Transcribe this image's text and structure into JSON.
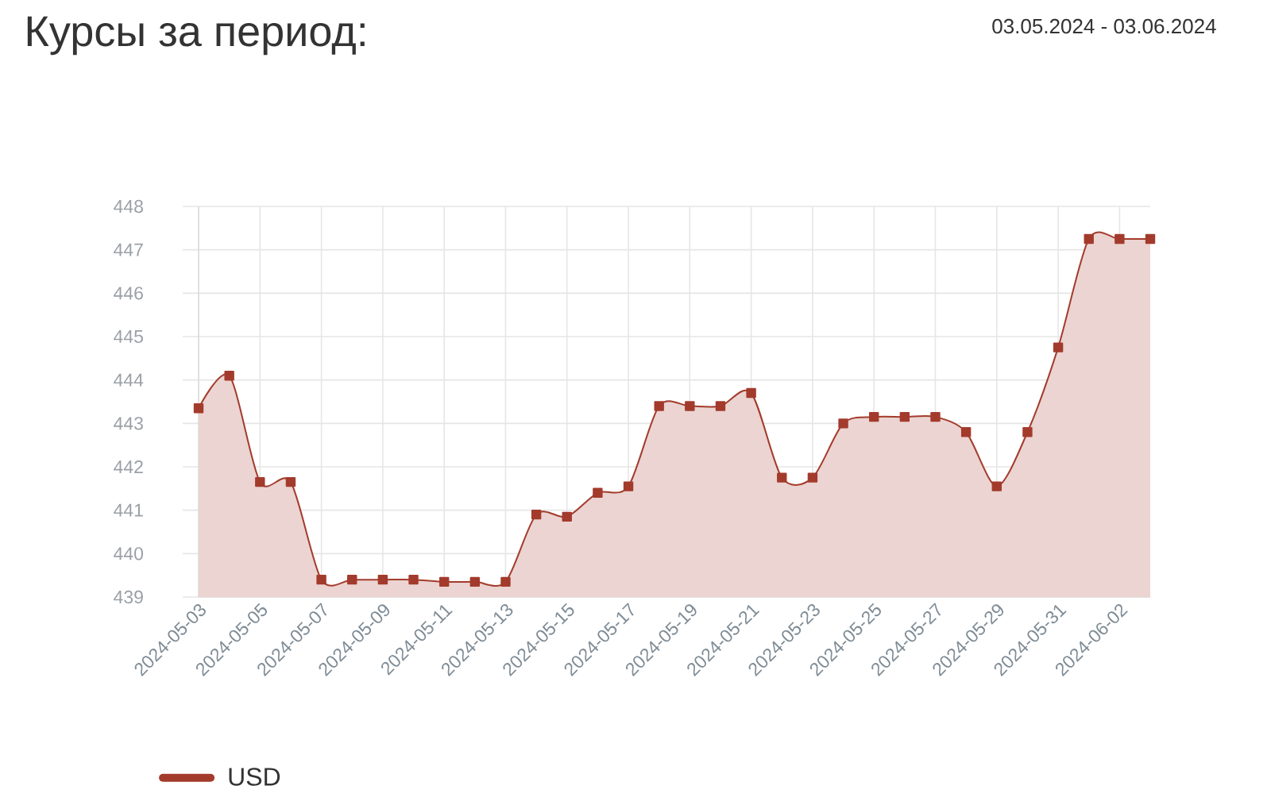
{
  "chart_data": {
    "type": "area",
    "title": "Курсы за период:",
    "subtitle": "03.05.2024 - 03.06.2024",
    "x": [
      "2024-05-03",
      "2024-05-04",
      "2024-05-05",
      "2024-05-06",
      "2024-05-07",
      "2024-05-08",
      "2024-05-09",
      "2024-05-10",
      "2024-05-11",
      "2024-05-12",
      "2024-05-13",
      "2024-05-14",
      "2024-05-15",
      "2024-05-16",
      "2024-05-17",
      "2024-05-18",
      "2024-05-19",
      "2024-05-20",
      "2024-05-21",
      "2024-05-22",
      "2024-05-23",
      "2024-05-24",
      "2024-05-25",
      "2024-05-26",
      "2024-05-27",
      "2024-05-28",
      "2024-05-29",
      "2024-05-30",
      "2024-05-31",
      "2024-06-01",
      "2024-06-02",
      "2024-06-03"
    ],
    "series": [
      {
        "name": "USD",
        "color": "#a33b2c",
        "values": [
          443.35,
          444.1,
          441.65,
          441.65,
          439.4,
          439.4,
          439.4,
          439.4,
          439.35,
          439.35,
          439.35,
          440.9,
          440.85,
          441.4,
          441.55,
          443.4,
          443.4,
          443.4,
          443.7,
          441.75,
          441.75,
          443.0,
          443.15,
          443.15,
          443.15,
          442.8,
          441.55,
          442.8,
          444.75,
          447.25,
          447.25,
          447.25
        ]
      }
    ],
    "xlim": [
      "2024-05-03",
      "2024-06-03"
    ],
    "xticks": [
      "2024-05-03",
      "2024-05-05",
      "2024-05-07",
      "2024-05-09",
      "2024-05-11",
      "2024-05-13",
      "2024-05-15",
      "2024-05-17",
      "2024-05-19",
      "2024-05-21",
      "2024-05-23",
      "2024-05-25",
      "2024-05-27",
      "2024-05-29",
      "2024-05-31",
      "2024-06-02"
    ],
    "ylim": [
      439,
      448
    ],
    "yticks": [
      439,
      440,
      441,
      442,
      443,
      444,
      445,
      446,
      447,
      448
    ],
    "grid": true,
    "legend": "bottom left",
    "marker": "square",
    "line_style": "solid"
  }
}
